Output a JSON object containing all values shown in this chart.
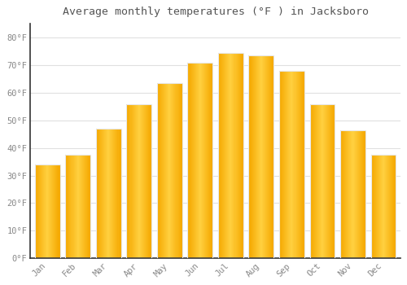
{
  "title": "Average monthly temperatures (°F ) in Jacksboro",
  "months": [
    "Jan",
    "Feb",
    "Mar",
    "Apr",
    "May",
    "Jun",
    "Jul",
    "Aug",
    "Sep",
    "Oct",
    "Nov",
    "Dec"
  ],
  "values": [
    34,
    37.5,
    47,
    56,
    63.5,
    71,
    74.5,
    73.5,
    68,
    56,
    46.5,
    37.5
  ],
  "bar_color_left": "#F5A800",
  "bar_color_mid": "#FFD040",
  "bar_color_right": "#F5A800",
  "bar_edge_color": "#E8E8E8",
  "background_color": "#FFFFFF",
  "grid_color": "#E0E0E0",
  "text_color": "#888888",
  "title_color": "#555555",
  "ylim": [
    0,
    85
  ],
  "yticks": [
    0,
    10,
    20,
    30,
    40,
    50,
    60,
    70,
    80
  ],
  "ytick_labels": [
    "0°F",
    "10°F",
    "20°F",
    "30°F",
    "40°F",
    "50°F",
    "60°F",
    "70°F",
    "80°F"
  ]
}
